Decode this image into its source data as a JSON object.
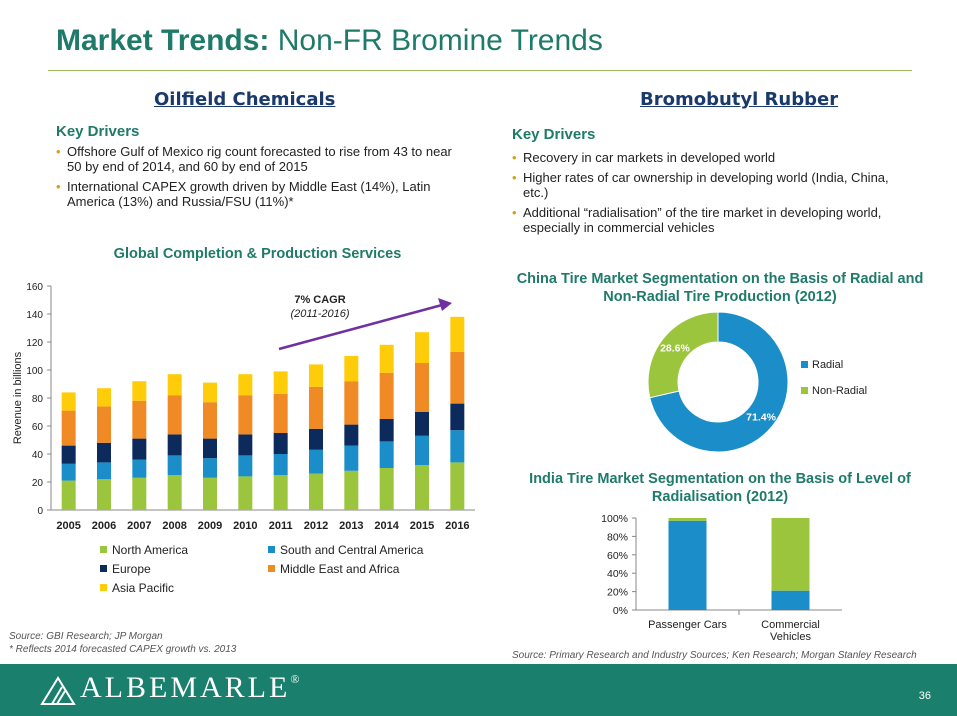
{
  "title": {
    "bold": "Market Trends:",
    "rest": "Non-FR Bromine Trends"
  },
  "left": {
    "heading": "Oilfield Chemicals",
    "key_drivers_label": "Key Drivers",
    "bullets": [
      "Offshore Gulf of Mexico rig count forecasted to rise from 43 to near 50 by end of 2014, and 60 by end of 2015",
      "International CAPEX growth driven by Middle East (14%), Latin America (13%) and Russia/FSU (11%)*"
    ]
  },
  "right": {
    "heading": "Bromobutyl Rubber",
    "key_drivers_label": "Key Drivers",
    "bullets": [
      "Recovery in car markets in developed world",
      "Higher rates of car ownership in developing world (India, China, etc.)",
      "Additional “radialisation” of the tire market in developing world, especially in commercial vehicles"
    ]
  },
  "chart_data": [
    {
      "type": "bar",
      "stacked": true,
      "title": "Global Completion & Production Services",
      "ylabel": "Revenue in billions",
      "xlabel": "",
      "ylim": [
        0,
        160
      ],
      "yticks": [
        0,
        20,
        40,
        60,
        80,
        100,
        120,
        140,
        160
      ],
      "categories": [
        "2005",
        "2006",
        "2007",
        "2008",
        "2009",
        "2010",
        "2011",
        "2012",
        "2013",
        "2014",
        "2015",
        "2016"
      ],
      "series": [
        {
          "name": "North America",
          "color": "#9bc53d",
          "values": [
            21,
            22,
            23,
            25,
            23,
            24,
            25,
            26,
            28,
            30,
            32,
            34
          ]
        },
        {
          "name": "South and Central America",
          "color": "#1b8ec9",
          "values": [
            12,
            12,
            13,
            14,
            14,
            15,
            15,
            17,
            18,
            19,
            21,
            23
          ]
        },
        {
          "name": "Europe",
          "color": "#0d2a5c",
          "values": [
            13,
            14,
            15,
            15,
            14,
            15,
            15,
            15,
            15,
            16,
            17,
            19
          ]
        },
        {
          "name": "Middle East and Africa",
          "color": "#f08a24",
          "values": [
            25,
            26,
            27,
            28,
            26,
            28,
            28,
            30,
            31,
            33,
            35,
            37
          ]
        },
        {
          "name": "Asia Pacific",
          "color": "#ffcc0a",
          "values": [
            13,
            13,
            14,
            15,
            14,
            15,
            16,
            16,
            18,
            20,
            22,
            25
          ]
        }
      ],
      "annotation": {
        "label": "7% CAGR",
        "sublabel": "(2011-2016)"
      },
      "legend": "bottom"
    },
    {
      "type": "pie",
      "donut": true,
      "title": "China Tire Market Segmentation on the Basis of Radial and Non-Radial Tire Production (2012)",
      "slices": [
        {
          "name": "Radial",
          "value": 71.4,
          "label": "71.4%",
          "color": "#1b8ec9"
        },
        {
          "name": "Non-Radial",
          "value": 28.6,
          "label": "28.6%",
          "color": "#9bc53d"
        }
      ],
      "legend": "right"
    },
    {
      "type": "bar",
      "stacked": true,
      "percent": true,
      "title": "India Tire Market Segmentation on the Basis of Level of Radialisation (2012)",
      "categories": [
        "Passenger Cars",
        "Commercial Vehicles"
      ],
      "ytick_labels": [
        "0%",
        "20%",
        "40%",
        "60%",
        "80%",
        "100%"
      ],
      "ylim": [
        0,
        100
      ],
      "series": [
        {
          "color": "#1b8ec9",
          "values": [
            97,
            21
          ]
        },
        {
          "color": "#9bc53d",
          "values": [
            3,
            79
          ]
        }
      ]
    }
  ],
  "sources": {
    "left_line1": "Source: GBI Research; JP Morgan",
    "left_line2": "* Reflects 2014 forecasted CAPEX growth vs. 2013",
    "right": "Source: Primary Research and Industry Sources; Ken Research; Morgan Stanley Research"
  },
  "footer": {
    "logo": "ALBEMARLE",
    "logo_mark": "®",
    "page": "36"
  }
}
